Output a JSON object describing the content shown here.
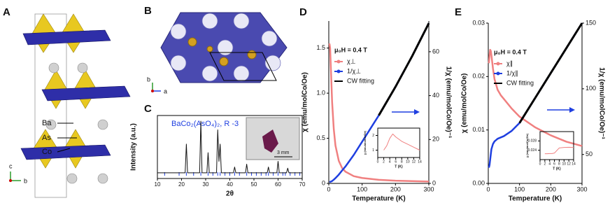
{
  "figure": {
    "panel_labels": [
      "A",
      "B",
      "C",
      "D",
      "E"
    ],
    "atoms": [
      "Ba",
      "As",
      "Co"
    ],
    "axes_a": [
      "c",
      "b"
    ],
    "axes_b": [
      "b",
      "a"
    ],
    "scale_bar": "3 mm"
  },
  "chart_data": [
    {
      "type": "line",
      "title": "BaCo₂(AsO₄)₂, R -3",
      "xlabel": "2θ",
      "ylabel": "Intensity (a.u.)",
      "x": [
        10,
        20,
        21.5,
        22,
        22.5,
        27.5,
        28,
        28.5,
        30.5,
        31,
        31.5,
        34.5,
        35,
        35.5,
        36,
        36.5,
        41.5,
        42,
        42.5,
        46.5,
        47,
        47.5,
        55.5,
        56,
        56.5,
        59.5,
        60,
        60.5,
        63.5,
        64,
        64.5,
        70
      ],
      "series": [
        {
          "color": "#111111",
          "values": [
            0.1,
            0.1,
            0.1,
            0.6,
            0.1,
            0.1,
            1.0,
            0.1,
            0.1,
            0.45,
            0.1,
            0.1,
            0.85,
            0.3,
            0.6,
            0.1,
            0.1,
            0.2,
            0.1,
            0.1,
            0.25,
            0.1,
            0.1,
            0.2,
            0.1,
            0.1,
            0.3,
            0.1,
            0.1,
            0.18,
            0.1,
            0.1
          ]
        }
      ],
      "reflections": [
        13,
        19,
        22,
        25,
        28,
        31,
        33,
        35,
        36,
        38,
        40,
        42,
        44,
        47,
        49,
        51,
        53,
        55,
        56,
        58,
        60,
        62,
        63,
        65,
        67,
        69
      ],
      "xlim": [
        10,
        70
      ],
      "xticks": [
        10,
        20,
        30,
        40,
        50,
        60,
        70
      ],
      "ylim": [
        0,
        1.1
      ]
    },
    {
      "type": "line",
      "annotation": "μ₀H = 0.4 T",
      "xlabel": "Temperature (K)",
      "ylabel": "χ (emu/molCo/Oe)",
      "y2label": "1/χ (emu/molCo/Oe)⁻¹",
      "x": [
        2,
        4,
        6,
        8,
        10,
        15,
        20,
        30,
        40,
        50,
        75,
        100,
        150,
        200,
        250,
        300
      ],
      "series": [
        {
          "name": "χ⊥",
          "color": "#f08080",
          "values": [
            1.55,
            1.5,
            1.3,
            1.1,
            0.9,
            0.6,
            0.42,
            0.25,
            0.17,
            0.13,
            0.08,
            0.06,
            0.04,
            0.03,
            0.025,
            0.02
          ]
        },
        {
          "name": "1/χ⊥",
          "color": "#1f3fe0",
          "axis": "y2",
          "values": [
            0.6,
            0.7,
            0.8,
            0.9,
            1.1,
            1.7,
            2.4,
            4,
            5.9,
            7.7,
            13,
            19,
            31,
            44,
            58,
            73
          ]
        },
        {
          "name": "CW fitting",
          "color": "#000000",
          "axis": "y2",
          "values": [
            null,
            null,
            null,
            null,
            null,
            null,
            null,
            null,
            null,
            null,
            null,
            null,
            31,
            44,
            58,
            73
          ]
        }
      ],
      "xlim": [
        0,
        300
      ],
      "xticks": [
        0,
        100,
        200,
        300
      ],
      "ylim": [
        0,
        1.8
      ],
      "yticks": [
        0,
        0.5,
        {
          "value": 1,
          "label": "1.0"
        },
        1.5
      ],
      "y2lim": [
        0,
        74
      ],
      "y2ticks": [
        0,
        20,
        40,
        60
      ]
    },
    {
      "type": "line",
      "xlabel": "T (K)",
      "ylabel": "χ (emu/molCo/Oe)",
      "x": [
        2,
        3,
        4,
        5,
        6,
        8,
        10,
        12,
        14
      ],
      "series": [
        {
          "color": "#f08080",
          "values": [
            1.0,
            1.3,
            1.8,
            2.1,
            1.9,
            1.6,
            1.4,
            1.2,
            1.0
          ]
        }
      ],
      "xlim": [
        0,
        14
      ],
      "xticks": [
        0,
        2,
        4,
        6,
        8,
        10,
        12,
        14
      ],
      "ylim": [
        0.5,
        2.5
      ],
      "yticks": [
        1,
        2
      ]
    },
    {
      "type": "line",
      "annotation": "μ₀H = 0.4 T",
      "xlabel": "Temperature (K)",
      "ylabel": "χ (emu/molCo/Oe)",
      "y2label": "1/χ (emu/molCo/Oe)⁻¹",
      "x": [
        2,
        4,
        6,
        8,
        10,
        15,
        20,
        30,
        40,
        50,
        75,
        100,
        150,
        200,
        250,
        300
      ],
      "series": [
        {
          "name": "χ∥",
          "color": "#f08080",
          "values": [
            0.0225,
            0.024,
            0.025,
            0.0248,
            0.024,
            0.0215,
            0.0195,
            0.0175,
            0.0165,
            0.0158,
            0.014,
            0.0125,
            0.0105,
            0.009,
            0.0078,
            0.007
          ]
        },
        {
          "name": "1/χ∥",
          "color": "#1f3fe0",
          "axis": "y2",
          "values": [
            40,
            42,
            46,
            50,
            54,
            58,
            60,
            62,
            63,
            64,
            68,
            74,
            93,
            112,
            131,
            150
          ]
        },
        {
          "name": "CW fitting",
          "color": "#000000",
          "axis": "y2",
          "values": [
            null,
            null,
            null,
            null,
            null,
            null,
            null,
            null,
            null,
            null,
            null,
            74,
            93,
            112,
            131,
            150
          ]
        }
      ],
      "xlim": [
        0,
        300
      ],
      "xticks": [
        0,
        100,
        200,
        300
      ],
      "ylim": [
        0,
        0.03
      ],
      "yticks": [
        {
          "value": 0,
          "label": "0.00"
        },
        0.01,
        0.02,
        0.03
      ],
      "y2lim": [
        28,
        150
      ],
      "y2ticks": [
        50,
        100,
        150
      ]
    },
    {
      "type": "line",
      "xlabel": "T (K)",
      "ylabel": "χ (emu/molCo/Oe)",
      "x": [
        2,
        3,
        4,
        5,
        6,
        8,
        10,
        12,
        14
      ],
      "series": [
        {
          "color": "#f08080",
          "values": [
            0.0225,
            0.0225,
            0.0226,
            0.0226,
            0.0228,
            0.025,
            0.0252,
            0.0253,
            0.0252
          ]
        }
      ],
      "xlim": [
        0,
        14
      ],
      "xticks": [
        0,
        2,
        4,
        6,
        8,
        10,
        12,
        14
      ],
      "ylim": [
        0.02,
        0.032
      ],
      "yticks": [
        0.024,
        0.028
      ]
    }
  ]
}
